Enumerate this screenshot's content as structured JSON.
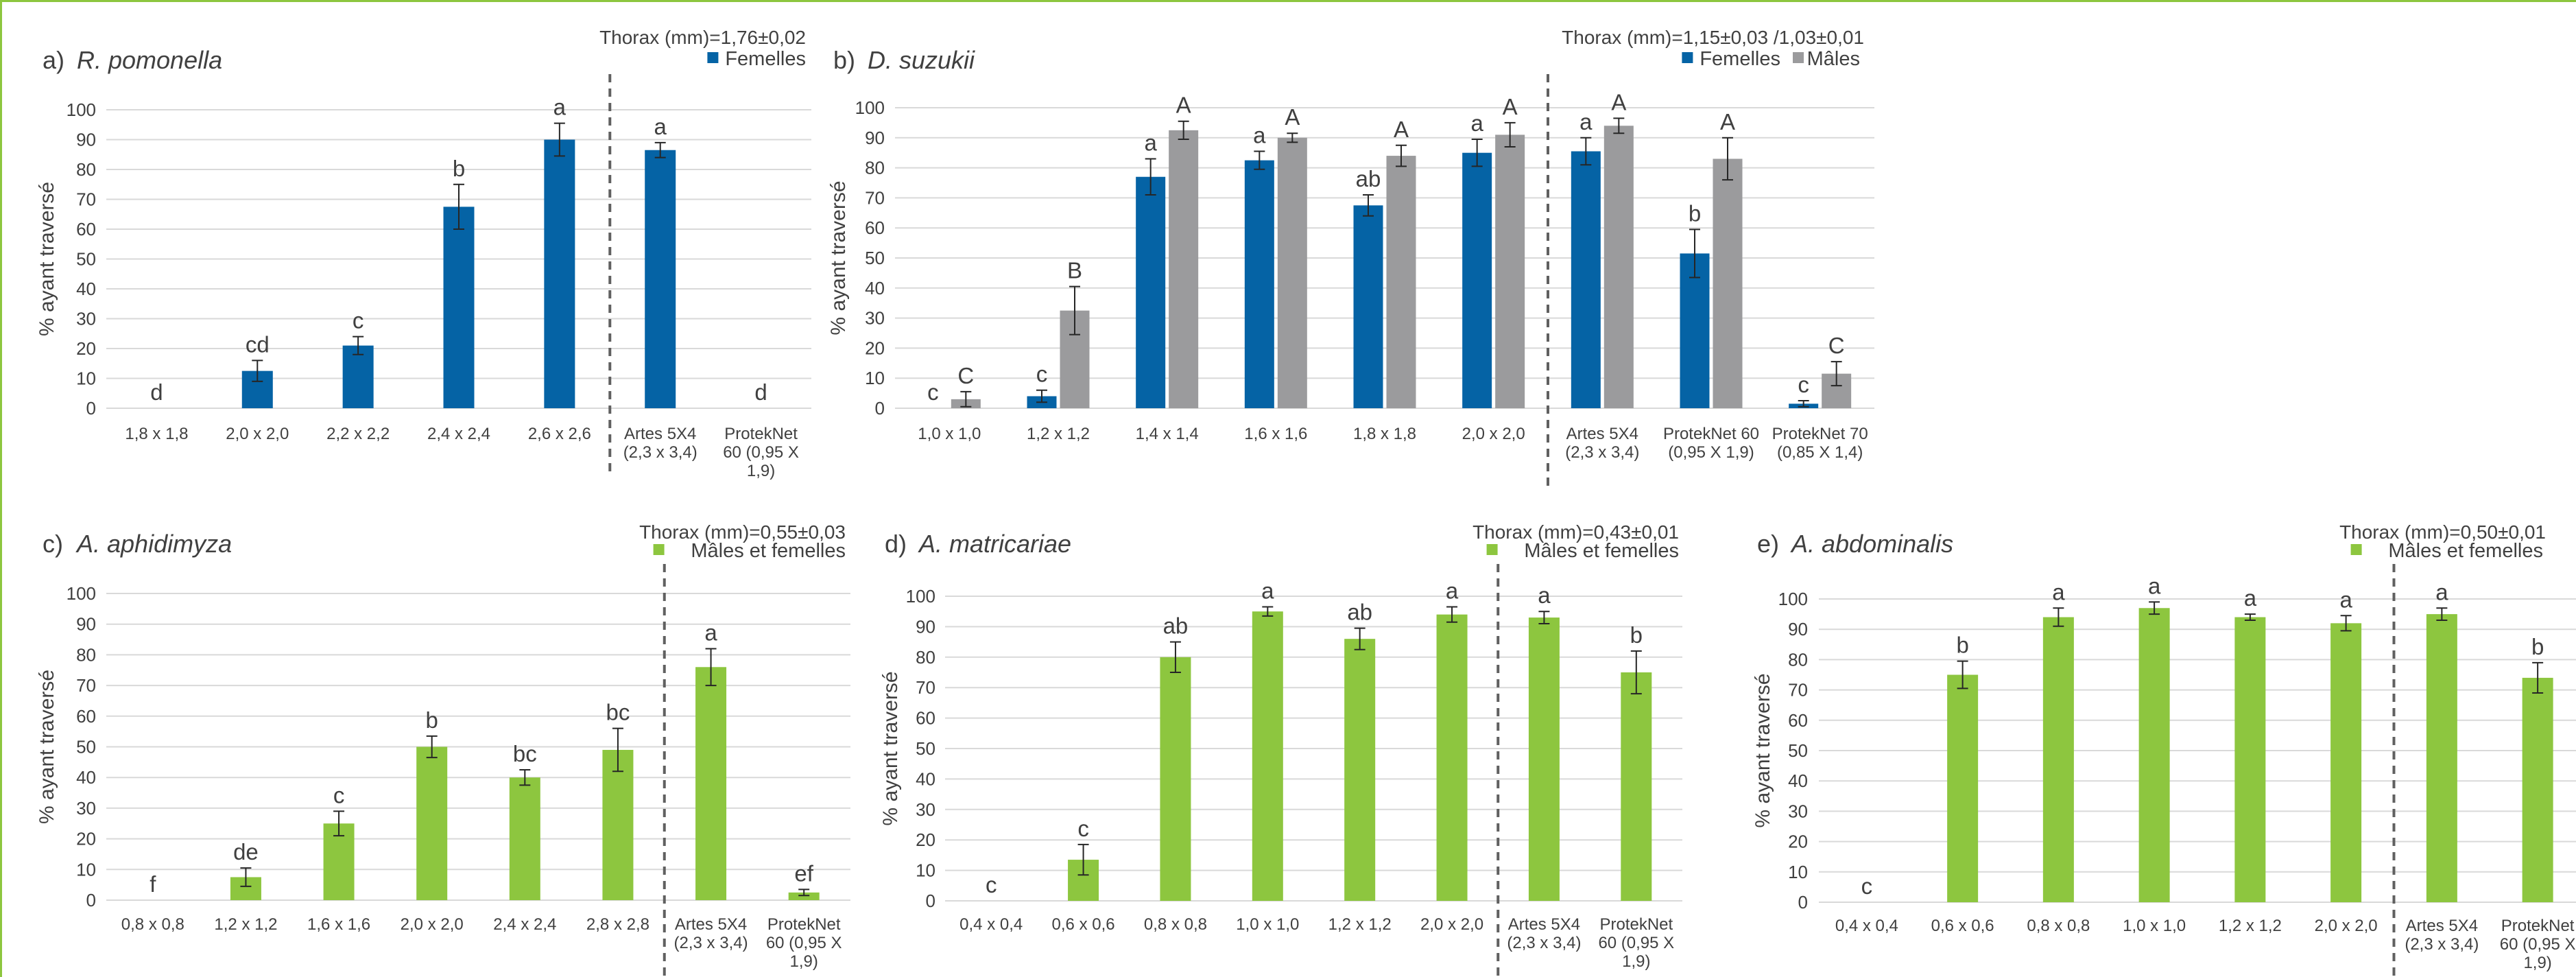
{
  "colors": {
    "blue": "#0563a5",
    "grey": "#9b9b9d",
    "green": "#8dc63f",
    "grid": "#d9d9d9",
    "text": "#404040",
    "divider": "#606060"
  },
  "chart_data": [
    {
      "type": "bar",
      "panel_label": "a)",
      "title": "R. pomonella",
      "thorax": "Thorax (mm)=1,76±0,02",
      "ylabel": "% ayant traversé",
      "ylim": [
        0,
        100
      ],
      "yticks": [
        0,
        10,
        20,
        30,
        40,
        50,
        60,
        70,
        80,
        90,
        100
      ],
      "grid": true,
      "legend_position": "top-right",
      "categories": [
        "1,8 x 1,8",
        "2,0 x 2,0",
        "2,2 x 2,2",
        "2,4 x 2,4",
        "2,6 x 2,6",
        "Artes 5X4 (2,3 x 3,4)",
        "ProtekNet 60 (0,95 X 1,9)"
      ],
      "category_lines": [
        [
          "1,8 x 1,8"
        ],
        [
          "2,0 x 2,0"
        ],
        [
          "2,2 x 2,2"
        ],
        [
          "2,4 x 2,4"
        ],
        [
          "2,6 x 2,6"
        ],
        [
          "Artes 5X4",
          "(2,3 x 3,4)"
        ],
        [
          "ProtekNet",
          "60 (0,95 X",
          "1,9)"
        ]
      ],
      "divider_after_index": 4,
      "series": [
        {
          "name": "Femelles",
          "color": "#0563a5",
          "values": [
            0,
            12.5,
            21,
            67.5,
            90,
            86.5,
            0
          ],
          "errors": [
            0,
            3.5,
            3,
            7.5,
            5.5,
            2.5,
            0
          ],
          "letters": [
            "d",
            "cd",
            "c",
            "b",
            "a",
            "a",
            "d"
          ]
        }
      ]
    },
    {
      "type": "bar",
      "panel_label": "b)",
      "title": "D. suzukii",
      "thorax": "Thorax (mm)=1,15±0,03 /1,03±0,01",
      "ylabel": "% ayant traversé",
      "ylim": [
        0,
        100
      ],
      "yticks": [
        0,
        10,
        20,
        30,
        40,
        50,
        60,
        70,
        80,
        90,
        100
      ],
      "grid": true,
      "legend_position": "top-right",
      "categories": [
        "1,0 x 1,0",
        "1,2 x 1,2",
        "1,4 x 1,4",
        "1,6 x 1,6",
        "1,8 x 1,8",
        "2,0 x 2,0",
        "Artes 5X4 (2,3 x 3,4)",
        "ProtekNet 60 (0,95 X 1,9)",
        "ProtekNet 70 (0,85 X 1,4)"
      ],
      "category_lines": [
        [
          "1,0 x 1,0"
        ],
        [
          "1,2 x 1,2"
        ],
        [
          "1,4 x 1,4"
        ],
        [
          "1,6 x 1,6"
        ],
        [
          "1,8 x 1,8"
        ],
        [
          "2,0 x 2,0"
        ],
        [
          "Artes 5X4",
          "(2,3 x 3,4)"
        ],
        [
          "ProtekNet 60",
          "(0,95 X 1,9)"
        ],
        [
          "ProtekNet 70",
          "(0,85 X 1,4)"
        ]
      ],
      "divider_after_index": 5,
      "series": [
        {
          "name": "Femelles",
          "color": "#0563a5",
          "values": [
            0,
            4,
            77,
            82.5,
            67.5,
            85,
            85.5,
            51.5,
            1.5
          ],
          "errors": [
            0,
            2,
            6,
            3,
            3.5,
            4.5,
            4.5,
            8,
            1
          ],
          "letters": [
            "c",
            "c",
            "a",
            "a",
            "ab",
            "a",
            "a",
            "b",
            "c"
          ]
        },
        {
          "name": "Mâles",
          "color": "#9b9b9d",
          "values": [
            3,
            32.5,
            92.5,
            90,
            84,
            91,
            94,
            83,
            11.5
          ],
          "errors": [
            2.5,
            8,
            3,
            1.5,
            3.5,
            4,
            2.5,
            7,
            4
          ],
          "letters": [
            "C",
            "B",
            "A",
            "A",
            "A",
            "A",
            "A",
            "A",
            "C"
          ]
        }
      ]
    },
    {
      "type": "bar",
      "panel_label": "c)",
      "title": "A. aphidimyza",
      "thorax": "Thorax (mm)=0,55±0,03",
      "ylabel": "% ayant traversé",
      "ylim": [
        0,
        100
      ],
      "yticks": [
        0,
        10,
        20,
        30,
        40,
        50,
        60,
        70,
        80,
        90,
        100
      ],
      "grid": true,
      "legend_position": "top-right",
      "categories": [
        "0,8 x 0,8",
        "1,2 x 1,2",
        "1,6 x 1,6",
        "2,0 x 2,0",
        "2,4 x 2,4",
        "2,8 x 2,8",
        "Artes 5X4 (2,3 x 3,4)",
        "ProtekNet 60 (0,95 X 1,9)"
      ],
      "category_lines": [
        [
          "0,8 x 0,8"
        ],
        [
          "1,2 x 1,2"
        ],
        [
          "1,6 x 1,6"
        ],
        [
          "2,0 x 2,0"
        ],
        [
          "2,4 x 2,4"
        ],
        [
          "2,8 x 2,8"
        ],
        [
          "Artes 5X4",
          "(2,3 x 3,4)"
        ],
        [
          "ProtekNet",
          "60 (0,95 X",
          "1,9)"
        ]
      ],
      "divider_after_index": 5,
      "series": [
        {
          "name": "Mâles et femelles",
          "color": "#8dc63f",
          "values": [
            0,
            7.5,
            25,
            50,
            40,
            49,
            76,
            2.5
          ],
          "errors": [
            0,
            3,
            4,
            3.5,
            2.5,
            7,
            6,
            1
          ],
          "letters": [
            "f",
            "de",
            "c",
            "b",
            "bc",
            "bc",
            "a",
            "ef"
          ]
        }
      ]
    },
    {
      "type": "bar",
      "panel_label": "d)",
      "title": "A. matricariae",
      "thorax": "Thorax (mm)=0,43±0,01",
      "ylabel": "% ayant traversé",
      "ylim": [
        0,
        100
      ],
      "yticks": [
        0,
        10,
        20,
        30,
        40,
        50,
        60,
        70,
        80,
        90,
        100
      ],
      "grid": true,
      "legend_position": "top-right",
      "categories": [
        "0,4 x 0,4",
        "0,6 x 0,6",
        "0,8 x 0,8",
        "1,0 x 1,0",
        "1,2 x 1,2",
        "2,0 x 2,0",
        "Artes 5X4 (2,3 x 3,4)",
        "ProtekNet 60 (0,95 X 1,9)"
      ],
      "category_lines": [
        [
          "0,4 x 0,4"
        ],
        [
          "0,6 x 0,6"
        ],
        [
          "0,8 x 0,8"
        ],
        [
          "1,0 x 1,0"
        ],
        [
          "1,2 x 1,2"
        ],
        [
          "2,0 x 2,0"
        ],
        [
          "Artes 5X4",
          "(2,3 x 3,4)"
        ],
        [
          "ProtekNet",
          "60 (0,95 X",
          "1,9)"
        ]
      ],
      "divider_after_index": 5,
      "series": [
        {
          "name": "Mâles et femelles",
          "color": "#8dc63f",
          "values": [
            0,
            13.5,
            80,
            95,
            86,
            94,
            93,
            75
          ],
          "errors": [
            0,
            5,
            5,
            1.5,
            3.5,
            2.5,
            2,
            7
          ],
          "letters": [
            "c",
            "c",
            "ab",
            "a",
            "ab",
            "a",
            "a",
            "b"
          ]
        }
      ]
    },
    {
      "type": "bar",
      "panel_label": "e)",
      "title": "A. abdominalis",
      "thorax": "Thorax (mm)=0,50±0,01",
      "ylabel": "% ayant traversé",
      "ylim": [
        0,
        100
      ],
      "yticks": [
        0,
        10,
        20,
        30,
        40,
        50,
        60,
        70,
        80,
        90,
        100
      ],
      "grid": true,
      "legend_position": "top-right",
      "categories": [
        "0,4 x 0,4",
        "0,6 x 0,6",
        "0,8 x 0,8",
        "1,0 x 1,0",
        "1,2 x 1,2",
        "2,0 x 2,0",
        "Artes 5X4 (2,3 x 3,4)",
        "ProtekNet 60 (0,95 X 1,9)"
      ],
      "category_lines": [
        [
          "0,4 x 0,4"
        ],
        [
          "0,6 x 0,6"
        ],
        [
          "0,8 x 0,8"
        ],
        [
          "1,0 x 1,0"
        ],
        [
          "1,2 x 1,2"
        ],
        [
          "2,0 x 2,0"
        ],
        [
          "Artes 5X4",
          "(2,3 x 3,4)"
        ],
        [
          "ProtekNet",
          "60 (0,95 X",
          "1,9)"
        ]
      ],
      "divider_after_index": 5,
      "series": [
        {
          "name": "Mâles et femelles",
          "color": "#8dc63f",
          "values": [
            0,
            75,
            94,
            97,
            94,
            92,
            95,
            74
          ],
          "errors": [
            0,
            4.5,
            3,
            2,
            1,
            2.5,
            2,
            5
          ],
          "letters": [
            "c",
            "b",
            "a",
            "a",
            "a",
            "a",
            "a",
            "b"
          ]
        }
      ]
    }
  ]
}
